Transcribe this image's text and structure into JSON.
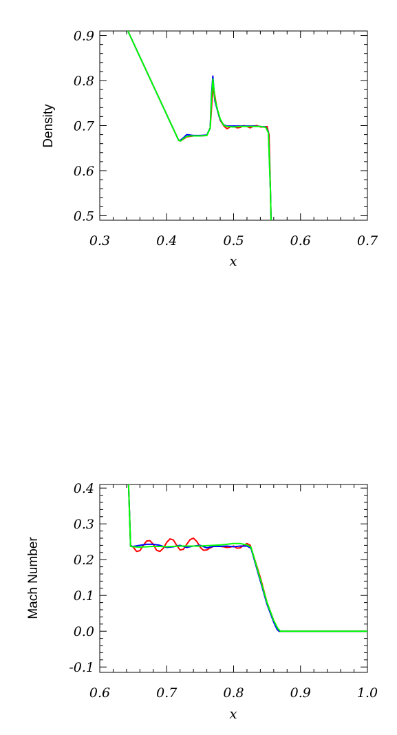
{
  "chart_data": [
    {
      "type": "line",
      "xlabel": "x",
      "ylabel": "Density",
      "xlim": [
        0.3,
        0.7
      ],
      "ylim": [
        0.49,
        0.91
      ],
      "x_ticks": [
        0.3,
        0.4,
        0.5,
        0.6,
        0.7
      ],
      "x_tick_labels": [
        "0.3",
        "0.4",
        "0.5",
        "0.6",
        "0.7"
      ],
      "y_ticks": [
        0.5,
        0.6,
        0.7,
        0.8,
        0.9
      ],
      "y_tick_labels": [
        "0.5",
        "0.6",
        "0.7",
        "0.8",
        "0.9"
      ],
      "grid": false,
      "series": [
        {
          "color": "#ff0000",
          "x": [
            0.342,
            0.418,
            0.421,
            0.425,
            0.43,
            0.435,
            0.44,
            0.45,
            0.46,
            0.465,
            0.468,
            0.47,
            0.473,
            0.476,
            0.48,
            0.485,
            0.49,
            0.495,
            0.5,
            0.505,
            0.51,
            0.515,
            0.52,
            0.525,
            0.53,
            0.535,
            0.54,
            0.545,
            0.55,
            0.553,
            0.555,
            0.556
          ],
          "y": [
            0.91,
            0.667,
            0.666,
            0.67,
            0.675,
            0.676,
            0.677,
            0.677,
            0.678,
            0.695,
            0.76,
            0.785,
            0.757,
            0.733,
            0.712,
            0.7,
            0.693,
            0.697,
            0.699,
            0.695,
            0.696,
            0.7,
            0.698,
            0.695,
            0.699,
            0.7,
            0.697,
            0.697,
            0.698,
            0.68,
            0.56,
            0.49
          ]
        },
        {
          "color": "#0000ff",
          "x": [
            0.342,
            0.418,
            0.421,
            0.425,
            0.43,
            0.435,
            0.44,
            0.45,
            0.46,
            0.465,
            0.467,
            0.469,
            0.472,
            0.476,
            0.48,
            0.485,
            0.49,
            0.5,
            0.51,
            0.52,
            0.53,
            0.54,
            0.548,
            0.552,
            0.555,
            0.556
          ],
          "y": [
            0.91,
            0.667,
            0.668,
            0.673,
            0.68,
            0.679,
            0.678,
            0.678,
            0.679,
            0.695,
            0.77,
            0.81,
            0.755,
            0.733,
            0.713,
            0.702,
            0.699,
            0.699,
            0.699,
            0.699,
            0.699,
            0.698,
            0.697,
            0.686,
            0.56,
            0.49
          ]
        },
        {
          "color": "#00ff00",
          "x": [
            0.342,
            0.418,
            0.421,
            0.425,
            0.43,
            0.435,
            0.44,
            0.45,
            0.46,
            0.465,
            0.467,
            0.469,
            0.472,
            0.476,
            0.48,
            0.485,
            0.49,
            0.5,
            0.51,
            0.52,
            0.53,
            0.54,
            0.548,
            0.552,
            0.555,
            0.556
          ],
          "y": [
            0.91,
            0.667,
            0.666,
            0.671,
            0.676,
            0.677,
            0.677,
            0.677,
            0.678,
            0.694,
            0.76,
            0.803,
            0.76,
            0.735,
            0.715,
            0.701,
            0.698,
            0.697,
            0.698,
            0.698,
            0.698,
            0.698,
            0.696,
            0.684,
            0.56,
            0.49
          ]
        }
      ]
    },
    {
      "type": "line",
      "xlabel": "x",
      "ylabel": "Mach Number",
      "xlim": [
        0.6,
        1.0
      ],
      "ylim": [
        -0.115,
        0.41
      ],
      "x_ticks": [
        0.6,
        0.7,
        0.8,
        0.9,
        1.0
      ],
      "x_tick_labels": [
        "0.6",
        "0.7",
        "0.8",
        "0.9",
        "1.0"
      ],
      "y_ticks": [
        -0.1,
        0.0,
        0.1,
        0.2,
        0.3,
        0.4
      ],
      "y_tick_labels": [
        "-0.1",
        "0.0",
        "0.1",
        "0.2",
        "0.3",
        "0.4"
      ],
      "grid": false,
      "series": [
        {
          "color": "#ff0000",
          "x": [
            0.643,
            0.645,
            0.646,
            0.65,
            0.655,
            0.66,
            0.665,
            0.67,
            0.675,
            0.68,
            0.685,
            0.69,
            0.695,
            0.7,
            0.705,
            0.71,
            0.715,
            0.72,
            0.725,
            0.73,
            0.735,
            0.74,
            0.745,
            0.75,
            0.755,
            0.76,
            0.765,
            0.77,
            0.775,
            0.78,
            0.785,
            0.79,
            0.795,
            0.8,
            0.805,
            0.81,
            0.815,
            0.82,
            0.825,
            0.83,
            0.84,
            0.85,
            0.86,
            0.865,
            0.868,
            0.9,
            1.0
          ],
          "y": [
            0.41,
            0.3,
            0.24,
            0.235,
            0.223,
            0.225,
            0.24,
            0.252,
            0.253,
            0.243,
            0.226,
            0.223,
            0.232,
            0.248,
            0.258,
            0.255,
            0.24,
            0.227,
            0.229,
            0.243,
            0.256,
            0.26,
            0.251,
            0.235,
            0.226,
            0.227,
            0.233,
            0.237,
            0.238,
            0.237,
            0.236,
            0.234,
            0.235,
            0.238,
            0.232,
            0.233,
            0.24,
            0.245,
            0.24,
            0.21,
            0.15,
            0.08,
            0.03,
            0.008,
            0.0,
            0.0,
            0.0
          ]
        },
        {
          "color": "#0000ff",
          "x": [
            0.643,
            0.645,
            0.646,
            0.65,
            0.66,
            0.67,
            0.68,
            0.69,
            0.7,
            0.71,
            0.72,
            0.73,
            0.74,
            0.75,
            0.76,
            0.77,
            0.78,
            0.79,
            0.8,
            0.81,
            0.82,
            0.826,
            0.84,
            0.85,
            0.86,
            0.865,
            0.868,
            0.9,
            1.0
          ],
          "y": [
            0.41,
            0.3,
            0.238,
            0.237,
            0.24,
            0.243,
            0.243,
            0.24,
            0.234,
            0.236,
            0.24,
            0.234,
            0.238,
            0.24,
            0.233,
            0.237,
            0.237,
            0.238,
            0.236,
            0.238,
            0.238,
            0.232,
            0.14,
            0.075,
            0.025,
            0.005,
            0.0,
            0.0,
            0.0
          ]
        },
        {
          "color": "#00ff00",
          "x": [
            0.643,
            0.645,
            0.646,
            0.65,
            0.66,
            0.67,
            0.68,
            0.69,
            0.7,
            0.71,
            0.72,
            0.73,
            0.74,
            0.75,
            0.76,
            0.77,
            0.78,
            0.79,
            0.8,
            0.81,
            0.82,
            0.826,
            0.84,
            0.85,
            0.86,
            0.866,
            0.87,
            0.9,
            1.0
          ],
          "y": [
            0.41,
            0.3,
            0.237,
            0.236,
            0.235,
            0.236,
            0.237,
            0.237,
            0.236,
            0.237,
            0.238,
            0.238,
            0.238,
            0.238,
            0.239,
            0.24,
            0.241,
            0.243,
            0.245,
            0.245,
            0.241,
            0.235,
            0.145,
            0.08,
            0.03,
            0.008,
            0.0,
            0.0,
            0.0
          ]
        }
      ]
    }
  ]
}
